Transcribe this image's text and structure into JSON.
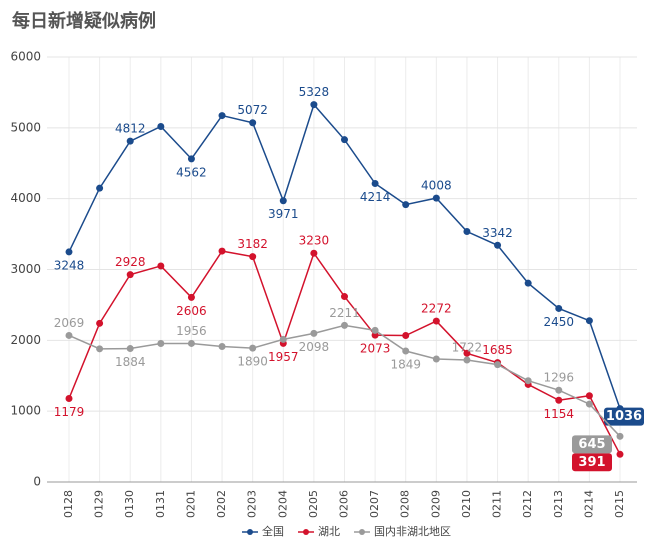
{
  "chart_data": {
    "type": "line",
    "title": "每日新增疑似病例",
    "categories": [
      "0128",
      "0129",
      "0130",
      "0131",
      "0201",
      "0202",
      "0203",
      "0204",
      "0205",
      "0206",
      "0207",
      "0208",
      "0209",
      "0210",
      "0211",
      "0212",
      "0213",
      "0214",
      "0215"
    ],
    "series": [
      {
        "name": "全国",
        "color": "#1b4b8c",
        "values": [
          3248,
          4148,
          4812,
          5019,
          4562,
          5173,
          5072,
          3971,
          5328,
          4833,
          4214,
          3916,
          4008,
          3536,
          3342,
          2807,
          2450,
          2277,
          1036
        ],
        "value_labels": [
          "3248",
          null,
          "4812",
          null,
          "4562",
          null,
          "5072",
          "3971",
          "5328",
          null,
          "4214",
          null,
          "4008",
          null,
          "3342",
          null,
          "2450",
          null,
          "1036"
        ]
      },
      {
        "name": "湖北",
        "color": "#d3122c",
        "values": [
          1179,
          2240,
          2928,
          3050,
          2606,
          3260,
          3182,
          1957,
          3230,
          2618,
          2073,
          2068,
          2272,
          1817,
          1685,
          1377,
          1154,
          1218,
          391
        ],
        "value_labels": [
          "1179",
          null,
          "2928",
          null,
          "2606",
          null,
          "3182",
          "1957",
          "3230",
          null,
          "2073",
          null,
          "2272",
          null,
          "1685",
          null,
          "1154",
          null,
          "391"
        ]
      },
      {
        "name": "国内非湖北地区",
        "color": "#9a9a9a",
        "values": [
          2069,
          1880,
          1884,
          1955,
          1956,
          1913,
          1890,
          2014,
          2098,
          2211,
          2141,
          1849,
          1736,
          1722,
          1657,
          1430,
          1296,
          1100,
          645
        ],
        "value_labels": [
          "2069",
          null,
          "1884",
          null,
          "1956",
          null,
          "1890",
          null,
          "2098",
          "2211",
          null,
          "1849",
          null,
          "1722",
          null,
          null,
          "1296",
          null,
          "645"
        ]
      }
    ],
    "ylim": [
      0,
      6000
    ],
    "yticks": [
      0,
      1000,
      2000,
      3000,
      4000,
      5000,
      6000
    ],
    "grid": true
  }
}
